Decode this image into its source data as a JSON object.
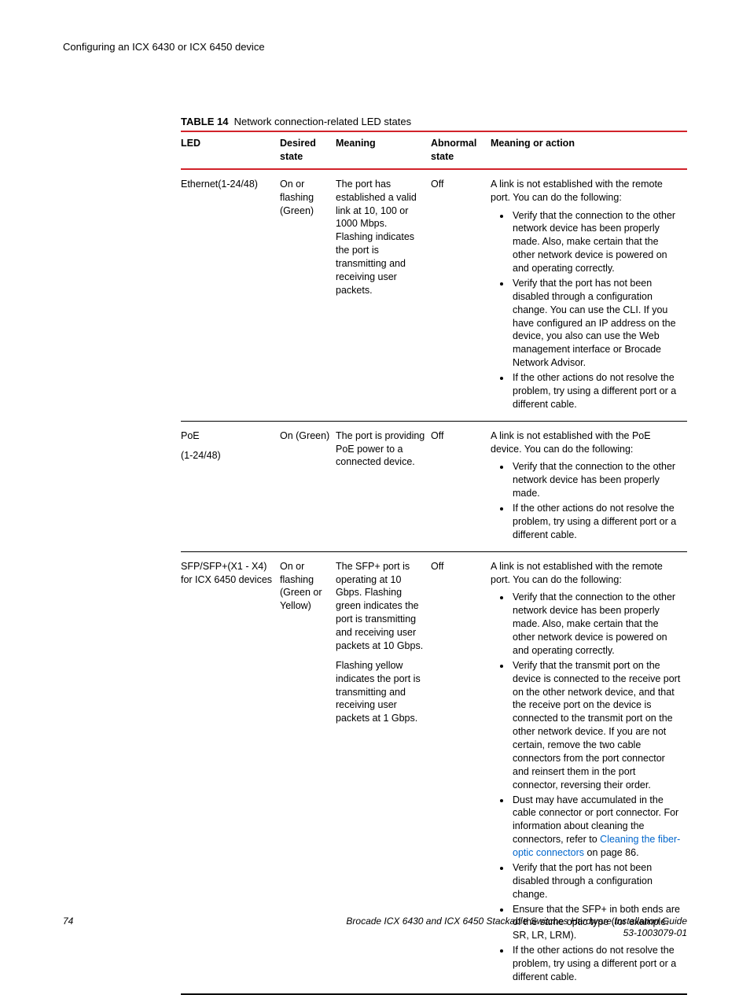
{
  "running_head": "Configuring an ICX 6430 or ICX 6450 device",
  "table": {
    "number": "TABLE 14",
    "title": "Network connection-related LED states",
    "columns": [
      "LED",
      "Desired state",
      "Meaning",
      "Abnormal state",
      "Meaning or action"
    ],
    "rows": [
      {
        "led": "Ethernet(1-24/48)",
        "desired": "On or flashing (Green)",
        "meaning": [
          "The port has established a valid link at 10, 100 or 1000 Mbps. Flashing indicates the port is transmitting and receiving user packets."
        ],
        "abnormal": "Off",
        "action_intro": "A link is not established with the remote port. You can do the following:",
        "actions": [
          {
            "text": "Verify that the connection to the other network device has been properly made. Also, make certain that the other network device is powered on and operating correctly."
          },
          {
            "text": "Verify that the port has not been disabled through a configuration change. You can use the CLI. If you have configured an IP address on the device, you also can use the Web management interface or Brocade Network Advisor."
          },
          {
            "text": "If the other actions do not resolve the problem, try using a different port or a different cable."
          }
        ]
      },
      {
        "led": "PoE\n(1-24/48)",
        "desired": "On (Green)",
        "meaning": [
          "The port is providing PoE power to a connected device."
        ],
        "abnormal": "Off",
        "action_intro": "A link is not established with the PoE device. You can do the following:",
        "actions": [
          {
            "text": "Verify that the connection to the other network device has been properly made."
          },
          {
            "text": "If the other actions do not resolve the problem, try using a different port or a different cable."
          }
        ]
      },
      {
        "led": "SFP/SFP+(X1 - X4) for ICX 6450 devices",
        "desired": "On or flashing (Green or Yellow)",
        "meaning": [
          "The SFP+ port is operating at 10 Gbps. Flashing green indicates the port is transmitting and receiving user packets at 10 Gbps.",
          "Flashing yellow indicates the port is transmitting and receiving user packets at 1 Gbps."
        ],
        "abnormal": "Off",
        "action_intro": "A link is not established with the remote port. You can do the following:",
        "actions": [
          {
            "text": "Verify that the connection to the other network device has been properly made. Also, make certain that the other network device is powered on and operating correctly."
          },
          {
            "text": "Verify that the transmit port on the device is connected to the receive port on the other network device, and that the receive port on the device is connected to the transmit port on the other network device. If you are not certain, remove the two cable connectors from the port connector and reinsert them in the port connector, reversing their order."
          },
          {
            "pre": "Dust may have accumulated in the cable connector or port connector. For information about cleaning the connectors, refer to ",
            "link": "Cleaning the fiber-optic connectors",
            "post": " on page 86."
          },
          {
            "text": "Verify that the port has not been disabled through a configuration change."
          },
          {
            "text": "Ensure that the SFP+ in both ends are of the same optic type (for example. SR, LR, LRM)."
          },
          {
            "text": "If the other actions do not resolve the problem, try using a different port or a different cable."
          }
        ]
      }
    ]
  },
  "footer": {
    "page": "74",
    "doc_title": "Brocade ICX 6430 and ICX 6450 Stackable Switches Hardware Installation Guide",
    "doc_number": "53-1003079-01"
  },
  "colors": {
    "rule": "#d2232a",
    "link": "#0066cc",
    "text": "#000000",
    "background": "#ffffff"
  }
}
